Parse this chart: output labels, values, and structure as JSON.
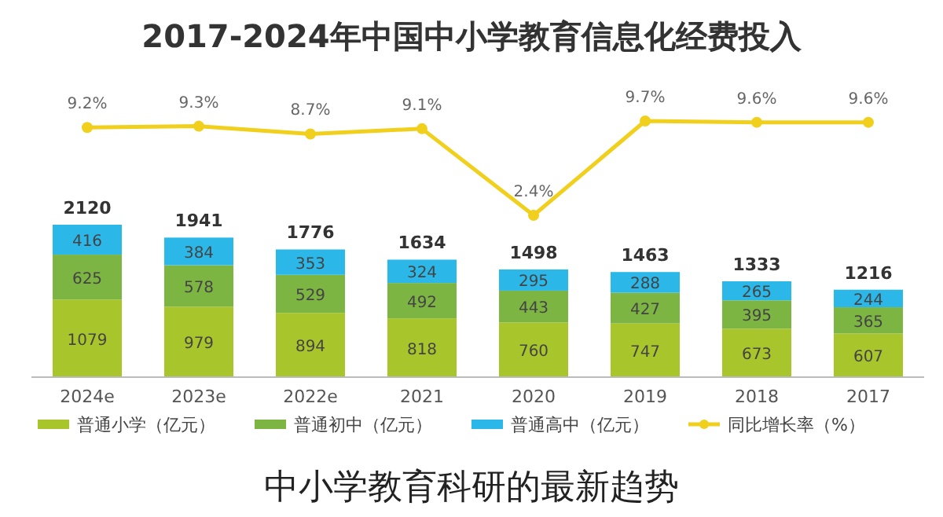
{
  "chart_data": [
    {
      "type": "line",
      "title": "2017-2024年中国中小学教育信息化经费投入",
      "categories": [
        null,
        null,
        null,
        null,
        null,
        null,
        null,
        null
      ],
      "legend": "bottom",
      "marker": "circle",
      "series": [
        {
          "name": "同比增长率（%）",
          "color": "#f0d01c",
          "values": [
            9.2,
            9.3,
            8.7,
            9.1,
            2.4,
            9.7,
            9.6,
            9.6
          ],
          "value_labels": [
            "9.2%",
            "9.3%",
            "8.7%",
            "9.1%",
            "2.4%",
            "9.7%",
            "9.6%",
            "9.6%"
          ]
        }
      ]
    },
    {
      "type": "bar",
      "categories": [
        "2024e",
        "2023e",
        "2022e",
        "2021",
        "2020",
        "2019",
        "2018",
        "2017"
      ],
      "stacked": true,
      "data_labels": true,
      "tick_labels": "x",
      "legend": "bottom",
      "series": [
        {
          "name": "普通小学（亿元）",
          "color": "#a8c62c",
          "values": [
            1079,
            979,
            894,
            818,
            760,
            747,
            673,
            607
          ]
        },
        {
          "name": "普通初中（亿元）",
          "color": "#7db543",
          "values": [
            625,
            578,
            529,
            492,
            443,
            427,
            395,
            365
          ]
        },
        {
          "name": "普通高中（亿元）",
          "color": "#2bb8e8",
          "values": [
            416,
            384,
            353,
            324,
            295,
            288,
            265,
            244
          ]
        }
      ],
      "totals": [
        "2120",
        "1941",
        "1776",
        "1634",
        "1498",
        "1463",
        "1333",
        "1216"
      ],
      "annotations": [
        "中小学教育科研的最新趋势"
      ]
    }
  ]
}
